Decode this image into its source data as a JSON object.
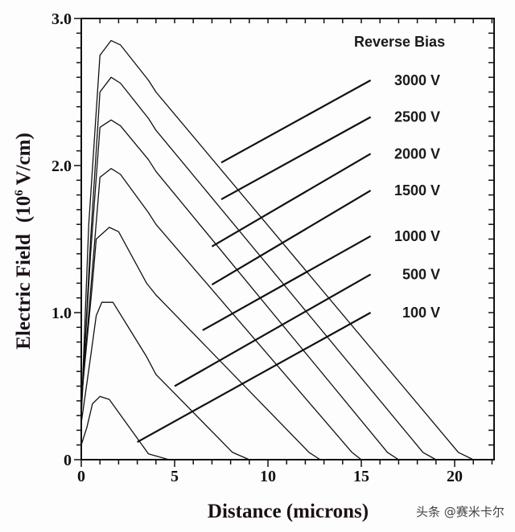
{
  "chart_data": {
    "type": "line",
    "title": "",
    "xlabel": "Distance (microns)",
    "ylabel": "Electric Field",
    "ylabel_unit_prefix": "(10",
    "ylabel_unit_exp": "6",
    "ylabel_unit_suffix": " V/cm)",
    "xlim": [
      0,
      22
    ],
    "ylim": [
      0,
      3.0
    ],
    "x_ticks": [
      0,
      5,
      10,
      15,
      20
    ],
    "x_tick_labels": [
      "0",
      "5",
      "10",
      "15",
      "20"
    ],
    "y_ticks": [
      0,
      1.0,
      2.0,
      3.0
    ],
    "y_tick_labels": [
      "0",
      "1.0",
      "2.0",
      "3.0"
    ],
    "grid": false,
    "legend_title": "Reverse Bias",
    "series": [
      {
        "name": "3000 V",
        "x": [
          0,
          0.4,
          1.0,
          1.6,
          2.1,
          3.6,
          4.0,
          20.2,
          21.0
        ],
        "y": [
          0.3,
          1.6,
          2.75,
          2.85,
          2.82,
          2.58,
          2.5,
          0.05,
          0
        ]
      },
      {
        "name": "2500 V",
        "x": [
          0,
          0.5,
          1.0,
          1.6,
          2.1,
          3.6,
          4.0,
          18.3,
          19.0
        ],
        "y": [
          0.3,
          1.5,
          2.5,
          2.6,
          2.56,
          2.32,
          2.24,
          0.05,
          0
        ]
      },
      {
        "name": "2000 V",
        "x": [
          0,
          0.5,
          1.0,
          1.6,
          2.1,
          3.6,
          4.0,
          16.4,
          17.0
        ],
        "y": [
          0.35,
          1.4,
          2.26,
          2.31,
          2.27,
          2.04,
          1.96,
          0.05,
          0
        ]
      },
      {
        "name": "1500 V",
        "x": [
          0,
          0.6,
          1.0,
          1.6,
          2.1,
          3.6,
          4.0,
          14.5,
          15.0
        ],
        "y": [
          0.38,
          1.3,
          1.92,
          1.98,
          1.94,
          1.68,
          1.6,
          0.05,
          0
        ]
      },
      {
        "name": "1000 V",
        "x": [
          0,
          0.6,
          0.8,
          1.5,
          2.0,
          3.5,
          4.0,
          12.2,
          12.8
        ],
        "y": [
          0.4,
          1.2,
          1.5,
          1.58,
          1.55,
          1.2,
          1.12,
          0.05,
          0
        ]
      },
      {
        "name": "500 V",
        "x": [
          0,
          0.5,
          0.8,
          1.1,
          1.7,
          3.5,
          4.0,
          8.1,
          9.0
        ],
        "y": [
          0.25,
          0.7,
          0.98,
          1.07,
          1.07,
          0.7,
          0.58,
          0.05,
          0
        ]
      },
      {
        "name": "100 V",
        "x": [
          0,
          0.3,
          0.6,
          1.0,
          1.5,
          3.6,
          4.7
        ],
        "y": [
          0.1,
          0.22,
          0.38,
          0.43,
          0.41,
          0.04,
          0
        ]
      }
    ],
    "legend_lines": [
      {
        "name": "3000 V",
        "from": [
          7.5,
          2.02
        ],
        "to": [
          15.5,
          2.58
        ]
      },
      {
        "name": "2500 V",
        "from": [
          7.5,
          1.77
        ],
        "to": [
          15.5,
          2.33
        ]
      },
      {
        "name": "2000 V",
        "from": [
          7.0,
          1.45
        ],
        "to": [
          15.5,
          2.08
        ]
      },
      {
        "name": "1500 V",
        "from": [
          7.0,
          1.19
        ],
        "to": [
          15.5,
          1.83
        ]
      },
      {
        "name": "1000 V",
        "from": [
          6.5,
          0.88
        ],
        "to": [
          15.5,
          1.52
        ]
      },
      {
        "name": "500 V",
        "from": [
          5.0,
          0.5
        ],
        "to": [
          15.5,
          1.26
        ]
      },
      {
        "name": "100 V",
        "from": [
          3.0,
          0.12
        ],
        "to": [
          15.5,
          1.0
        ]
      }
    ]
  },
  "watermark": "头条 @赛米卡尔",
  "colors": {
    "line": "#111111",
    "background": "#fdfdfd"
  }
}
